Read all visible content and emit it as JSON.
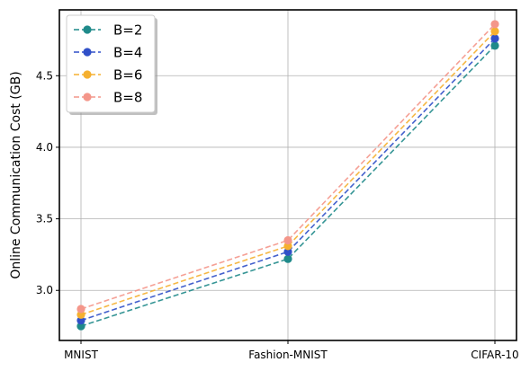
{
  "chart_data": {
    "type": "line",
    "title": "",
    "xlabel": "",
    "ylabel": "Online Communication Cost (GB)",
    "categories": [
      "MNIST",
      "Fashion-MNIST",
      "CIFAR-10"
    ],
    "ylim": [
      2.65,
      4.96
    ],
    "yticks": [
      3.0,
      3.5,
      4.0,
      4.5
    ],
    "ytick_labels": [
      "3.0",
      "3.5",
      "4.0",
      "4.5"
    ],
    "grid": true,
    "legend_position": "top-left",
    "series": [
      {
        "name": "B=2",
        "color": "#1f8a8a",
        "values": [
          2.75,
          3.22,
          4.71
        ]
      },
      {
        "name": "B=4",
        "color": "#3050c8",
        "values": [
          2.79,
          3.27,
          4.76
        ]
      },
      {
        "name": "B=6",
        "color": "#f5b030",
        "values": [
          2.83,
          3.31,
          4.81
        ]
      },
      {
        "name": "B=8",
        "color": "#f4968a",
        "values": [
          2.87,
          3.35,
          4.86
        ]
      }
    ]
  }
}
